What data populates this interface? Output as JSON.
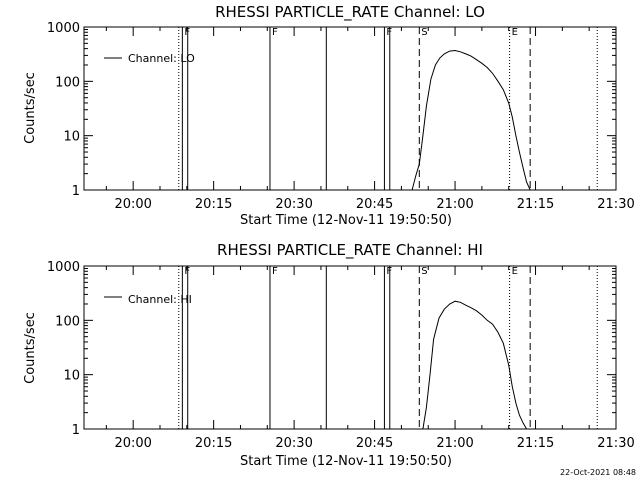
{
  "footer": "22-Oct-2021 08:48",
  "chart_data": [
    {
      "type": "line",
      "title": "RHESSI PARTICLE_RATE Channel: LO",
      "xlabel": "Start Time (12-Nov-11 19:50:50)",
      "ylabel": "Counts/sec",
      "legend": {
        "placement": "top-left",
        "label": "Channel: LO"
      },
      "yscale": "log",
      "ylim": [
        1,
        1000
      ],
      "xlim": [
        "19:50:50",
        "21:30:00"
      ],
      "x_ticks": [
        "20:00",
        "20:15",
        "20:30",
        "20:45",
        "21:00",
        "21:15",
        "21:30"
      ],
      "y_ticks": [
        "1",
        "10",
        "100",
        "1000"
      ],
      "event_lines": [
        {
          "time": "20:08:30",
          "style": "dotted"
        },
        {
          "time": "20:09:10",
          "style": "solid",
          "label": "F"
        },
        {
          "time": "20:10:10",
          "style": "solid"
        },
        {
          "time": "20:25:30",
          "style": "solid",
          "label": "F"
        },
        {
          "time": "20:36:00",
          "style": "solid"
        },
        {
          "time": "20:46:50",
          "style": "solid",
          "label": "F"
        },
        {
          "time": "20:47:50",
          "style": "solid"
        },
        {
          "time": "20:53:20",
          "style": "dashed",
          "label": "S"
        },
        {
          "time": "21:10:10",
          "style": "dotted",
          "label": "E"
        },
        {
          "time": "21:14:00",
          "style": "dashed"
        },
        {
          "time": "21:26:30",
          "style": "dotted"
        }
      ],
      "series": [
        {
          "name": "Channel: LO",
          "x": [
            "20:52:00",
            "20:52:40",
            "20:53:20",
            "20:54:00",
            "20:54:40",
            "20:55:30",
            "20:56:20",
            "20:57:10",
            "20:58:00",
            "20:59:00",
            "21:00:00",
            "21:01:00",
            "21:02:00",
            "21:03:00",
            "21:04:00",
            "21:05:00",
            "21:06:00",
            "21:07:00",
            "21:08:00",
            "21:09:00",
            "21:10:00",
            "21:10:40",
            "21:11:20",
            "21:12:00",
            "21:12:40",
            "21:13:20",
            "21:14:00"
          ],
          "y": [
            1,
            1.8,
            3,
            10,
            35,
            110,
            200,
            270,
            320,
            360,
            370,
            350,
            320,
            290,
            250,
            215,
            180,
            140,
            100,
            70,
            40,
            22,
            10,
            5,
            2.6,
            1.4,
            1
          ]
        }
      ]
    },
    {
      "type": "line",
      "title": "RHESSI PARTICLE_RATE Channel: HI",
      "xlabel": "Start Time (12-Nov-11 19:50:50)",
      "ylabel": "Counts/sec",
      "legend": {
        "placement": "top-left",
        "label": "Channel: HI"
      },
      "yscale": "log",
      "ylim": [
        1,
        1000
      ],
      "xlim": [
        "19:50:50",
        "21:30:00"
      ],
      "x_ticks": [
        "20:00",
        "20:15",
        "20:30",
        "20:45",
        "21:00",
        "21:15",
        "21:30"
      ],
      "y_ticks": [
        "1",
        "10",
        "100",
        "1000"
      ],
      "event_lines": [
        {
          "time": "20:08:30",
          "style": "dotted"
        },
        {
          "time": "20:09:10",
          "style": "solid",
          "label": "F"
        },
        {
          "time": "20:10:10",
          "style": "solid"
        },
        {
          "time": "20:25:30",
          "style": "solid",
          "label": "F"
        },
        {
          "time": "20:36:00",
          "style": "solid"
        },
        {
          "time": "20:46:50",
          "style": "solid",
          "label": "F"
        },
        {
          "time": "20:47:50",
          "style": "solid"
        },
        {
          "time": "20:53:20",
          "style": "dashed",
          "label": "S"
        },
        {
          "time": "21:10:10",
          "style": "dotted",
          "label": "E"
        },
        {
          "time": "21:14:00",
          "style": "dashed"
        },
        {
          "time": "21:26:30",
          "style": "dotted"
        }
      ],
      "series": [
        {
          "name": "Channel: HI",
          "x": [
            "20:54:00",
            "20:54:40",
            "20:55:20",
            "20:56:00",
            "20:57:00",
            "20:58:00",
            "20:59:00",
            "21:00:00",
            "21:01:00",
            "21:02:00",
            "21:03:00",
            "21:04:00",
            "21:05:00",
            "21:06:00",
            "21:07:00",
            "21:08:00",
            "21:09:00",
            "21:10:00",
            "21:10:40",
            "21:11:20",
            "21:12:00",
            "21:12:40",
            "21:13:20"
          ],
          "y": [
            1,
            2.5,
            10,
            45,
            110,
            160,
            200,
            225,
            215,
            190,
            170,
            150,
            125,
            100,
            85,
            60,
            38,
            15,
            6,
            3,
            1.8,
            1.3,
            1
          ]
        }
      ]
    }
  ]
}
